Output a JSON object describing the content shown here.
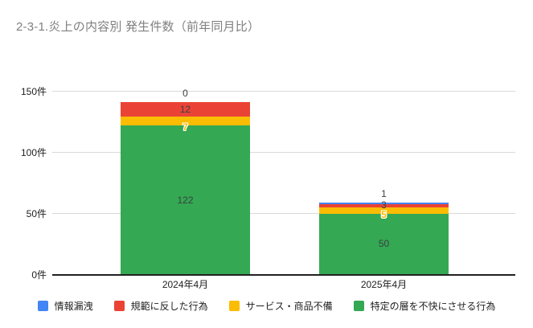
{
  "title": "2-3-1.炎上の内容別 発生件数（前年同月比）",
  "chart_data": {
    "type": "bar",
    "stacked": true,
    "title": "2-3-1.炎上の内容別 発生件数（前年同月比）",
    "categories": [
      "2024年4月",
      "2025年4月"
    ],
    "series": [
      {
        "name": "情報漏洩",
        "color": "#4285F4",
        "values": [
          0,
          1
        ]
      },
      {
        "name": "規範に反した行為",
        "color": "#EA4335",
        "values": [
          12,
          3
        ]
      },
      {
        "name": "サービス・商品不備",
        "color": "#FBBC04",
        "values": [
          7,
          5
        ]
      },
      {
        "name": "特定の層を不快にさせる行為",
        "color": "#34A853",
        "values": [
          122,
          50
        ]
      }
    ],
    "stack_order_bottom_to_top": [
      "特定の層を不快にさせる行為",
      "サービス・商品不備",
      "規範に反した行為",
      "情報漏洩"
    ],
    "totals": [
      141,
      59
    ],
    "yticks": [
      0,
      50,
      100,
      150
    ],
    "ytick_labels": [
      "0件",
      "50件",
      "100件",
      "150件"
    ],
    "ylim": [
      0,
      150
    ],
    "y_unit": "件",
    "grid": true,
    "data_labels": true,
    "legend_position": "bottom",
    "colors": {
      "title_text": "#808080",
      "axis_text": "#1f1f1f",
      "data_label_dark": "#3c4043",
      "gridline": "#d9d9d9",
      "axis_line": "#212121",
      "background": "#ffffff"
    }
  }
}
